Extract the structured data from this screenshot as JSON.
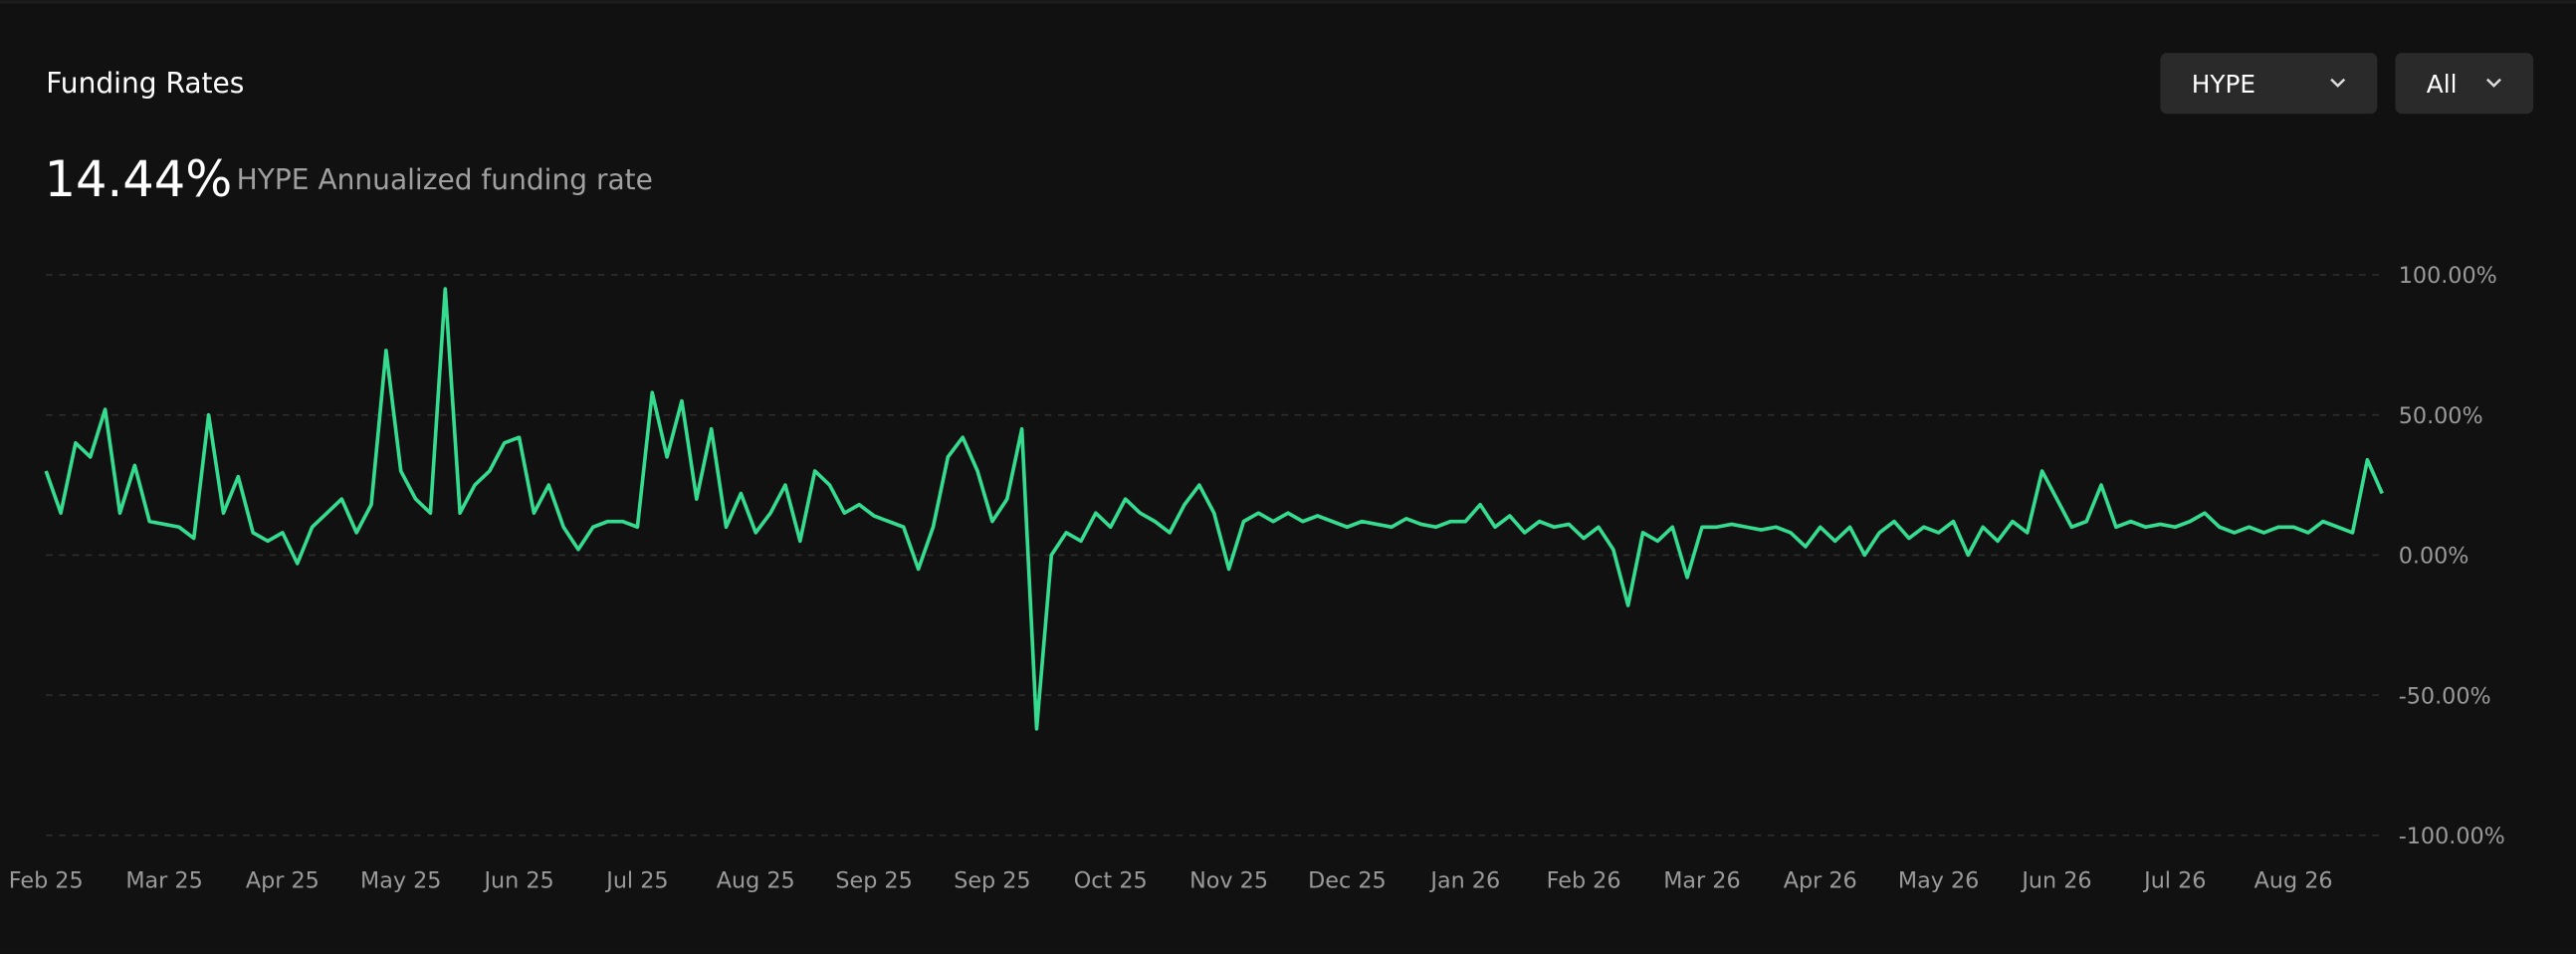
{
  "header": {
    "title": "Funding Rates",
    "value": "14.44%",
    "subtitle": "HYPE Annualized funding rate"
  },
  "controls": [
    {
      "label": "HYPE"
    },
    {
      "label": "All"
    }
  ],
  "chart_data": {
    "type": "line",
    "series": [
      {
        "name": "HYPE",
        "color": "#35dc8f",
        "values": [
          30,
          15,
          40,
          35,
          52,
          15,
          32,
          12,
          11,
          10,
          6,
          50,
          15,
          28,
          8,
          5,
          8,
          -3,
          10,
          15,
          20,
          8,
          18,
          73,
          30,
          20,
          15,
          95,
          15,
          25,
          30,
          40,
          42,
          15,
          25,
          10,
          2,
          10,
          12,
          12,
          10,
          58,
          35,
          55,
          20,
          45,
          10,
          22,
          8,
          15,
          25,
          5,
          30,
          25,
          15,
          18,
          14,
          12,
          10,
          -5,
          10,
          35,
          42,
          30,
          12,
          20,
          45,
          -62,
          0,
          8,
          5,
          15,
          10,
          20,
          15,
          12,
          8,
          18,
          25,
          15,
          -5,
          12,
          15,
          12,
          15,
          12,
          14,
          12,
          10,
          12,
          11,
          10,
          13,
          11,
          10,
          12,
          12,
          18,
          10,
          14,
          8,
          12,
          10,
          11,
          6,
          10,
          2,
          -18,
          8,
          5,
          10,
          -8,
          10,
          10,
          11,
          10,
          9,
          10,
          8,
          3,
          10,
          5,
          10,
          0,
          8,
          12,
          6,
          10,
          8,
          12,
          0,
          10,
          5,
          12,
          8,
          30,
          20,
          10,
          12,
          25,
          10,
          12,
          10,
          11,
          10,
          12,
          15,
          10,
          8,
          10,
          8,
          10,
          10,
          8,
          12,
          10,
          8,
          34,
          22
        ]
      }
    ],
    "xlim": [
      0,
      158
    ],
    "xticks": [
      {
        "value": 0,
        "label": "Feb 25"
      },
      {
        "value": 8,
        "label": "Mar 25"
      },
      {
        "value": 16,
        "label": "Apr 25"
      },
      {
        "value": 24,
        "label": "May 25"
      },
      {
        "value": 32,
        "label": "Jun 25"
      },
      {
        "value": 40,
        "label": "Jul 25"
      },
      {
        "value": 48,
        "label": "Aug 25"
      },
      {
        "value": 56,
        "label": "Sep 25"
      },
      {
        "value": 64,
        "label": "Sep 25"
      },
      {
        "value": 72,
        "label": "Oct 25"
      },
      {
        "value": 80,
        "label": "Nov 25"
      },
      {
        "value": 88,
        "label": "Dec 25"
      },
      {
        "value": 96,
        "label": "Jan 26"
      },
      {
        "value": 104,
        "label": "Feb 26"
      },
      {
        "value": 112,
        "label": "Mar 26"
      },
      {
        "value": 120,
        "label": "Apr 26"
      },
      {
        "value": 128,
        "label": "May 26"
      },
      {
        "value": 136,
        "label": "Jun 26"
      },
      {
        "value": 144,
        "label": "Jul 26"
      },
      {
        "value": 152,
        "label": "Aug 26"
      }
    ],
    "ylim": [
      -100,
      100
    ],
    "yticks": [
      {
        "value": 100,
        "label": "100.00%"
      },
      {
        "value": 50,
        "label": "50.00%"
      },
      {
        "value": 0,
        "label": "0.00%"
      },
      {
        "value": -50,
        "label": "-50.00%"
      },
      {
        "value": -100,
        "label": "-100.00%"
      }
    ],
    "grid": true
  }
}
